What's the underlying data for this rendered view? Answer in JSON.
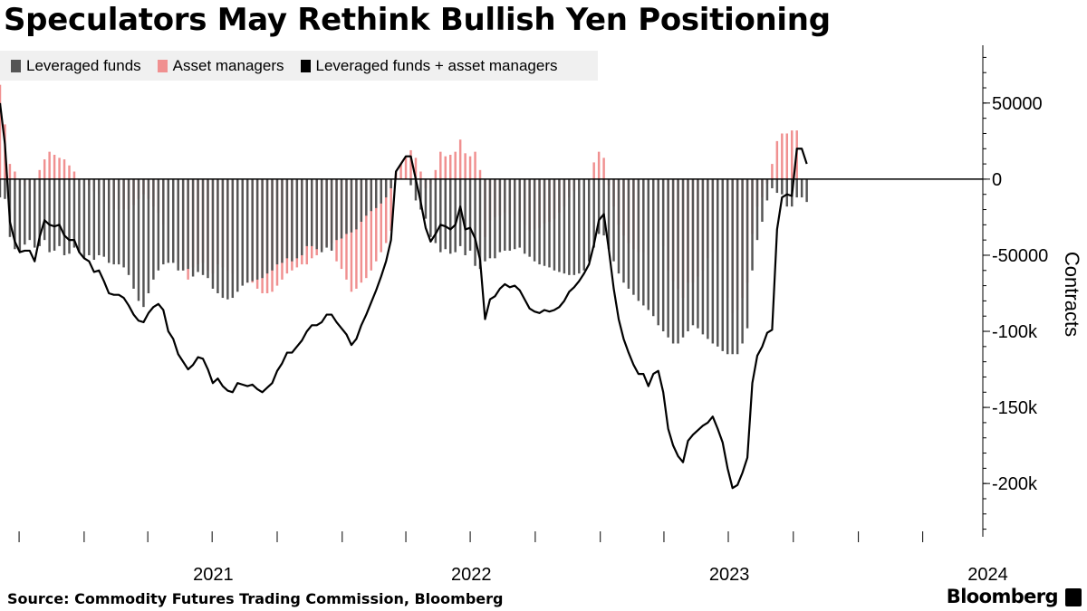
{
  "title": "Speculators May Rethink Bullish Yen Positioning",
  "source": "Source: Commodity Futures Trading Commission, Bloomberg",
  "brand": "Bloomberg",
  "chart_data": {
    "type": "bar",
    "title": "Speculators May Rethink Bullish Yen Positioning",
    "ylabel": "Contracts",
    "ylim": [
      -235000,
      85000
    ],
    "yticks": [
      50000,
      0,
      -50000,
      -100000,
      -150000,
      -200000
    ],
    "ytick_labels": [
      "50000",
      "0",
      "-50000",
      "-100k",
      "-150k",
      "-200k"
    ],
    "xtick_labels": [
      "2021",
      "2022",
      "2023",
      "2024"
    ],
    "xlim": [
      "2020-09-04",
      "2024-06-25"
    ],
    "year_starts": [
      "2021-01-01",
      "2022-01-01",
      "2023-01-01",
      "2024-01-01",
      "2025-01-01"
    ],
    "quarter_ticks": [
      "2020-10-01",
      "2021-01-01",
      "2021-04-01",
      "2021-07-01",
      "2021-10-01",
      "2022-01-01",
      "2022-04-01",
      "2022-07-01",
      "2022-10-01",
      "2023-01-01",
      "2023-04-01",
      "2023-07-01",
      "2023-10-01",
      "2024-01-01",
      "2024-04-01"
    ],
    "first_week": "2020-09-04",
    "week_interval_days": 7,
    "grid": false,
    "legend_position": "top-left",
    "colors": {
      "Leveraged funds": "#555555",
      "Asset managers": "#f09090",
      "Leveraged funds + asset managers": "#000000"
    },
    "series": [
      {
        "name": "Leveraged funds",
        "type": "bar",
        "values": [
          -12000,
          -13000,
          -38000,
          -46000,
          -48000,
          -43000,
          -40000,
          -45000,
          -44000,
          -40000,
          -48000,
          -47000,
          -44000,
          -50000,
          -49000,
          -45000,
          -48000,
          -52000,
          -50000,
          -53000,
          -50000,
          -51000,
          -55000,
          -56000,
          -56000,
          -58000,
          -63000,
          -72000,
          -80000,
          -84000,
          -75000,
          -66000,
          -60000,
          -56000,
          -55000,
          -55000,
          -60000,
          -60000,
          -59000,
          -64000,
          -61000,
          -63000,
          -65000,
          -72000,
          -75000,
          -78000,
          -79000,
          -78000,
          -74000,
          -70000,
          -68000,
          -67000,
          -66000,
          -65000,
          -62000,
          -60000,
          -56000,
          -55000,
          -52000,
          -54000,
          -52000,
          -50000,
          -44000,
          -44000,
          -46000,
          -48000,
          -45000,
          -47000,
          -40000,
          -39000,
          -36000,
          -35000,
          -33000,
          -28000,
          -24000,
          -21000,
          -19000,
          -16000,
          -12000,
          -6000,
          0,
          0,
          0,
          -4000,
          -14000,
          -20000,
          -26000,
          -38000,
          -42000,
          -48000,
          -46000,
          -49000,
          -48000,
          -44000,
          -50000,
          -47000,
          -57000,
          -59000,
          -54000,
          -52000,
          -52000,
          -48000,
          -47000,
          -47000,
          -46000,
          -45000,
          -49000,
          -51000,
          -54000,
          -56000,
          -57000,
          -58000,
          -60000,
          -61000,
          -62000,
          -63000,
          -63000,
          -62000,
          -60000,
          -54000,
          -45000,
          -36000,
          -37000,
          -46000,
          -54000,
          -62000,
          -68000,
          -72000,
          -76000,
          -80000,
          -83000,
          -86000,
          -90000,
          -96000,
          -100000,
          -104000,
          -108000,
          -108000,
          -104000,
          -100000,
          -96000,
          -98000,
          -102000,
          -105000,
          -108000,
          -110000,
          -113000,
          -115000,
          -115000,
          -115000,
          -108000,
          -98000,
          -60000,
          -40000,
          -28000,
          -14000,
          -6000,
          -9000,
          -10000,
          -18000,
          -18000,
          -12000,
          -12000,
          -15000
        ]
      },
      {
        "name": "Asset managers",
        "type": "bar",
        "values": [
          62000,
          36000,
          10000,
          5000,
          0,
          -4000,
          -7000,
          -9000,
          6000,
          13000,
          18000,
          16000,
          14000,
          13000,
          9000,
          5000,
          0,
          0,
          -4000,
          -8000,
          -10000,
          -16000,
          -20000,
          -20000,
          -20000,
          -20000,
          -20000,
          -17000,
          -13000,
          -10000,
          -13000,
          -18000,
          -22000,
          -30000,
          -45000,
          -50000,
          -55000,
          -60000,
          -66000,
          -58000,
          -56000,
          -55000,
          -60000,
          -62000,
          -56000,
          -58000,
          -60000,
          -62000,
          -60000,
          -65000,
          -68000,
          -68000,
          -72000,
          -75000,
          -75000,
          -74000,
          -70000,
          -66000,
          -62000,
          -60000,
          -58000,
          -56000,
          -56000,
          -52000,
          -50000,
          -46000,
          -44000,
          -42000,
          -54000,
          -59000,
          -66000,
          -74000,
          -72000,
          -68000,
          -65000,
          -60000,
          -54000,
          -48000,
          -42000,
          -34000,
          5000,
          10000,
          15000,
          19000,
          14000,
          5000,
          -6000,
          -3000,
          6000,
          18000,
          15000,
          16000,
          18000,
          26000,
          17000,
          15000,
          18000,
          6000,
          -38000,
          -27000,
          -25000,
          -24000,
          -22000,
          -23000,
          -24000,
          -28000,
          -30000,
          -34000,
          -33000,
          -32000,
          -29000,
          -28000,
          -26000,
          -22000,
          -18000,
          -12000,
          -8000,
          -7000,
          -5000,
          -2000,
          11000,
          18000,
          14000,
          -4000,
          -18000,
          -30000,
          -37000,
          -42000,
          -46000,
          -48000,
          -48000,
          -50000,
          -42000,
          -36000,
          -44000,
          -60000,
          -67000,
          -72000,
          -78000,
          -68000,
          -68000,
          -64000,
          -60000,
          -52000,
          -48000,
          -56000,
          -66000,
          -78000,
          -88000,
          -86000,
          -78000,
          -68000,
          -36000,
          -18000,
          -12000,
          -3000,
          10000,
          25000,
          30000,
          30000,
          32000,
          32000
        ]
      },
      {
        "name": "Leveraged funds + asset managers",
        "type": "line",
        "values": [
          50000,
          23000,
          -28000,
          -41000,
          -48000,
          -47000,
          -47000,
          -54000,
          -38000,
          -27000,
          -30000,
          -31000,
          -30000,
          -37000,
          -40000,
          -40000,
          -48000,
          -52000,
          -54000,
          -61000,
          -60000,
          -67000,
          -75000,
          -76000,
          -76000,
          -78000,
          -83000,
          -89000,
          -93000,
          -94000,
          -88000,
          -84000,
          -82000,
          -86000,
          -100000,
          -105000,
          -115000,
          -120000,
          -125000,
          -122000,
          -117000,
          -118000,
          -125000,
          -134000,
          -131000,
          -136000,
          -139000,
          -140000,
          -134000,
          -135000,
          -136000,
          -135000,
          -138000,
          -140000,
          -137000,
          -134000,
          -126000,
          -121000,
          -114000,
          -114000,
          -110000,
          -106000,
          -100000,
          -96000,
          -96000,
          -94000,
          -89000,
          -89000,
          -94000,
          -98000,
          -102000,
          -109000,
          -105000,
          -96000,
          -89000,
          -81000,
          -73000,
          -64000,
          -54000,
          -40000,
          5000,
          10000,
          15000,
          15000,
          0,
          -15000,
          -32000,
          -41000,
          -36000,
          -30000,
          -31000,
          -33000,
          -30000,
          -18000,
          -33000,
          -32000,
          -39000,
          -53000,
          -92000,
          -79000,
          -77000,
          -72000,
          -69000,
          -71000,
          -70000,
          -73000,
          -79000,
          -85000,
          -87000,
          -88000,
          -86000,
          -87000,
          -86000,
          -84000,
          -80000,
          -74000,
          -71000,
          -67000,
          -62000,
          -56000,
          -43000,
          -27000,
          -23000,
          -46000,
          -72000,
          -92000,
          -105000,
          -114000,
          -122000,
          -128000,
          -128000,
          -136000,
          -128000,
          -126000,
          -140000,
          -164000,
          -175000,
          -182000,
          -186000,
          -172000,
          -168000,
          -165000,
          -162000,
          -160000,
          -156000,
          -164000,
          -173000,
          -190000,
          -203000,
          -201000,
          -193000,
          -183000,
          -134000,
          -116000,
          -110000,
          -101000,
          -99000,
          -33000,
          -12000,
          -10000,
          -11000,
          20000,
          20000,
          10000
        ]
      }
    ]
  }
}
